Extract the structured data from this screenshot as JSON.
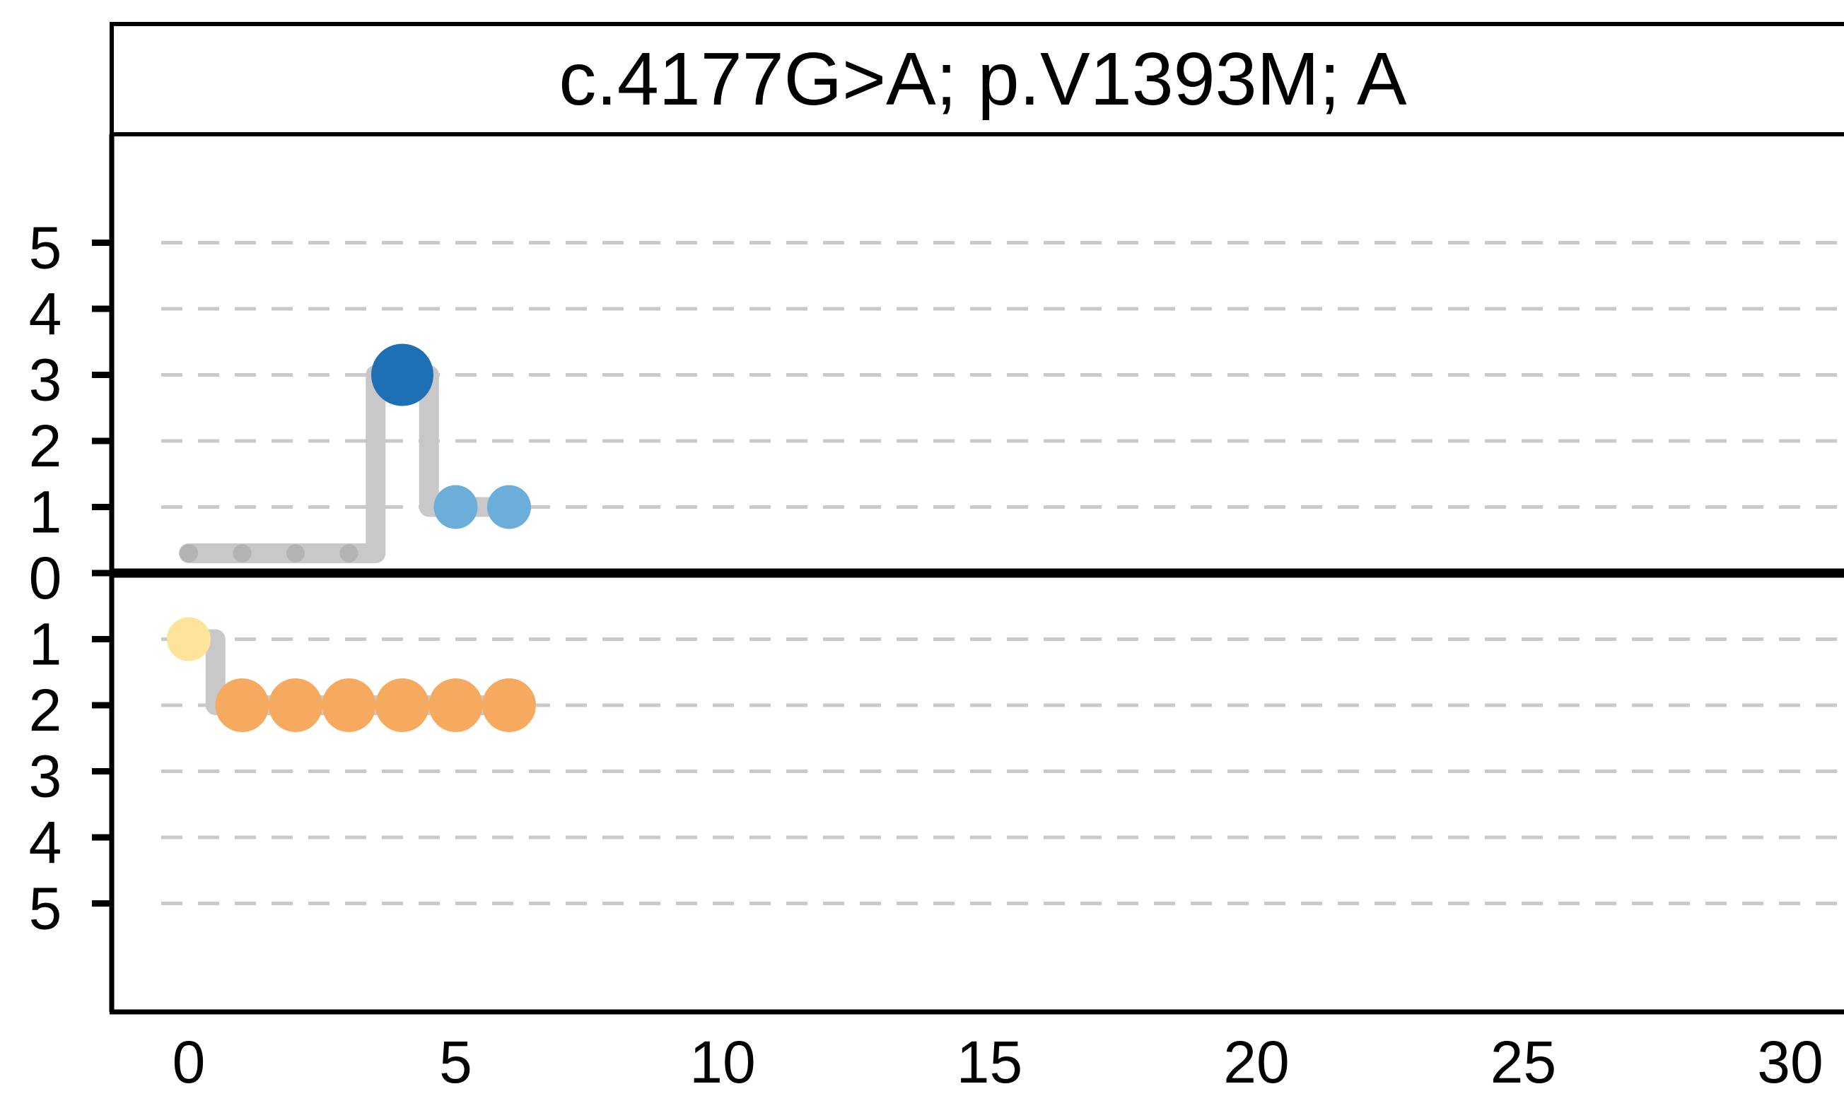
{
  "chart_data": {
    "type": "scatter",
    "title": "c.4177G>A; p.V1393M; A",
    "xlabel": "",
    "ylabel": "",
    "xlim": [
      -1.5,
      30
    ],
    "x_ticks": [
      0,
      5,
      10,
      15,
      20,
      25,
      30
    ],
    "x_tick_labels": [
      "0",
      "5",
      "10",
      "15",
      "20",
      "25",
      "30"
    ],
    "y_ticks": [
      5,
      4,
      3,
      2,
      1,
      0,
      -1,
      -2,
      -3,
      -4,
      -5
    ],
    "y_tick_labels": [
      "5",
      "4",
      "3",
      "2",
      "1",
      "0",
      "1",
      "2",
      "3",
      "4",
      "5"
    ],
    "grid": "dashed horizontal",
    "colors": {
      "track": "#c8c8c8",
      "small_point": "#b3b3b3",
      "dark_blue": "#1f6fb4",
      "light_blue": "#6aaed9",
      "light_yellow": "#fde49a",
      "orange": "#f6aa5f",
      "gridline": "#c9c9c9",
      "axis": "#000000"
    },
    "series": [
      {
        "points": [
          {
            "x": 0,
            "y": 0.3,
            "color": "small_point",
            "size": "small"
          },
          {
            "x": 1,
            "y": 0.3,
            "color": "small_point",
            "size": "small"
          },
          {
            "x": 2,
            "y": 0.3,
            "color": "small_point",
            "size": "small"
          },
          {
            "x": 3,
            "y": 0.3,
            "color": "small_point",
            "size": "small"
          },
          {
            "x": 4,
            "y": 3,
            "color": "dark_blue",
            "size": "large"
          },
          {
            "x": 5,
            "y": 1,
            "color": "light_blue",
            "size": "medium"
          },
          {
            "x": 6,
            "y": 1,
            "color": "light_blue",
            "size": "medium"
          }
        ]
      },
      {
        "points": [
          {
            "x": 0,
            "y": -1,
            "color": "light_yellow",
            "size": "medium"
          },
          {
            "x": 1,
            "y": -2,
            "color": "orange",
            "size": "large"
          },
          {
            "x": 2,
            "y": -2,
            "color": "orange",
            "size": "large"
          },
          {
            "x": 3,
            "y": -2,
            "color": "orange",
            "size": "large"
          },
          {
            "x": 4,
            "y": -2,
            "color": "orange",
            "size": "large"
          },
          {
            "x": 5,
            "y": -2,
            "color": "orange",
            "size": "large"
          },
          {
            "x": 6,
            "y": -2,
            "color": "orange",
            "size": "large"
          }
        ]
      }
    ]
  }
}
